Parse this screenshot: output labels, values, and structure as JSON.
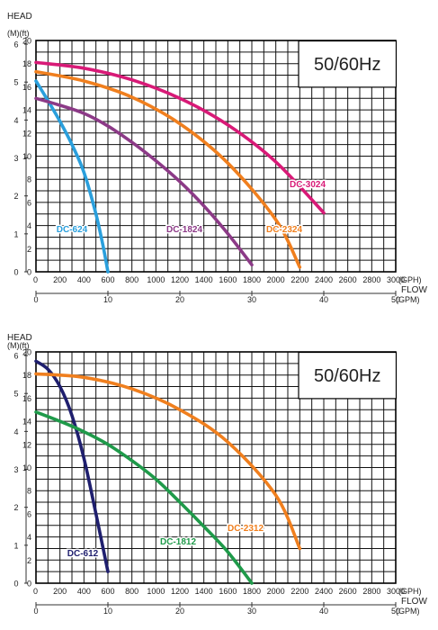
{
  "chart_data": [
    {
      "type": "line",
      "head_label": "HEAD",
      "head_units": "(M)(ft)",
      "badge": "50/60Hz",
      "flow_label": "FLOW",
      "gph_unit": "(GPH)",
      "gpm_unit": "(GPM)",
      "y_m_ticks": [
        "0",
        "1",
        "2",
        "3",
        "4",
        "5",
        "6"
      ],
      "y_ft_ticks": [
        "0",
        "2",
        "4",
        "6",
        "8",
        "10",
        "12",
        "14",
        "16",
        "18",
        "20"
      ],
      "x_gph_ticks": [
        "0",
        "200",
        "400",
        "600",
        "800",
        "1000",
        "1200",
        "1400",
        "1600",
        "1800",
        "2000",
        "2200",
        "2400",
        "2600",
        "2800",
        "3000"
      ],
      "x_gpm_ticks": [
        "0",
        "10",
        "20",
        "30",
        "40",
        "50"
      ],
      "xlim_gph": [
        0,
        3000
      ],
      "ylim_ft": [
        0,
        20
      ],
      "grid": true,
      "series": [
        {
          "name": "DC-624",
          "color": "#2a9fdc",
          "x": [
            0,
            100,
            200,
            300,
            400,
            500,
            560,
            600
          ],
          "y": [
            16.5,
            14.8,
            13.0,
            11.0,
            8.6,
            5.0,
            2.2,
            0
          ]
        },
        {
          "name": "DC-1824",
          "color": "#8c3a87",
          "x": [
            0,
            200,
            400,
            600,
            800,
            1000,
            1200,
            1400,
            1600,
            1800
          ],
          "y": [
            15.0,
            14.4,
            13.7,
            12.6,
            11.2,
            9.6,
            7.8,
            5.7,
            3.3,
            0.6
          ]
        },
        {
          "name": "DC-2324",
          "color": "#f07f1e",
          "x": [
            0,
            400,
            800,
            1200,
            1600,
            2000,
            2200
          ],
          "y": [
            17.3,
            16.5,
            15.1,
            12.8,
            9.4,
            4.5,
            0.4
          ]
        },
        {
          "name": "DC-3024",
          "color": "#d81a77",
          "x": [
            0,
            400,
            800,
            1200,
            1600,
            2000,
            2400
          ],
          "y": [
            18.1,
            17.6,
            16.6,
            15.0,
            12.7,
            9.5,
            5.1
          ]
        }
      ]
    },
    {
      "type": "line",
      "head_label": "HEAD",
      "head_units": "(M)(ft)",
      "badge": "50/60Hz",
      "flow_label": "FLOW",
      "gph_unit": "(GPH)",
      "gpm_unit": "(GPM)",
      "y_m_ticks": [
        "0",
        "1",
        "2",
        "3",
        "4",
        "5",
        "6"
      ],
      "y_ft_ticks": [
        "0",
        "2",
        "4",
        "6",
        "8",
        "10",
        "12",
        "14",
        "16",
        "18",
        "20"
      ],
      "x_gph_ticks": [
        "0",
        "200",
        "400",
        "600",
        "800",
        "1000",
        "1200",
        "1400",
        "1600",
        "1800",
        "2000",
        "2200",
        "2400",
        "2600",
        "2800",
        "3000"
      ],
      "x_gpm_ticks": [
        "0",
        "10",
        "20",
        "30",
        "40",
        "50"
      ],
      "xlim_gph": [
        0,
        3000
      ],
      "ylim_ft": [
        0,
        20
      ],
      "grid": true,
      "series": [
        {
          "name": "DC-612",
          "color": "#1f1f6e",
          "x": [
            0,
            100,
            200,
            300,
            400,
            500,
            560,
            600
          ],
          "y": [
            19.2,
            18.5,
            17.0,
            14.5,
            10.8,
            6.0,
            3.0,
            1.0
          ]
        },
        {
          "name": "DC-1812",
          "color": "#1f9a4a",
          "x": [
            0,
            200,
            400,
            600,
            800,
            1000,
            1200,
            1400,
            1600,
            1800
          ],
          "y": [
            14.8,
            14.0,
            13.1,
            12.0,
            10.6,
            9.0,
            7.0,
            4.9,
            2.7,
            0
          ]
        },
        {
          "name": "DC-2312",
          "color": "#f07f1e",
          "x": [
            0,
            400,
            800,
            1200,
            1600,
            2000,
            2200
          ],
          "y": [
            18.1,
            17.8,
            16.8,
            15.0,
            12.2,
            7.6,
            3.0
          ]
        }
      ]
    }
  ]
}
